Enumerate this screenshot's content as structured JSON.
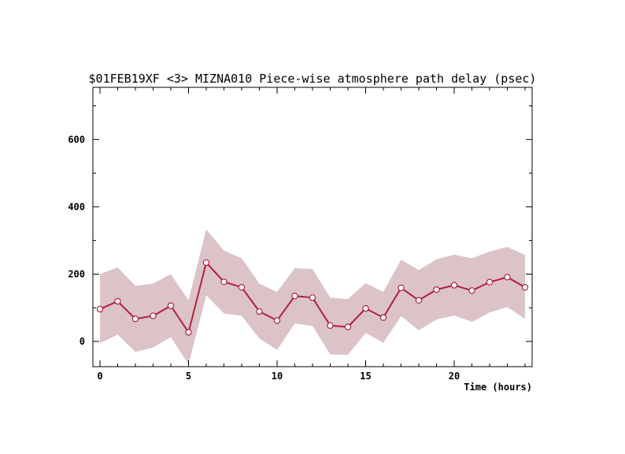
{
  "chart_data": {
    "type": "line",
    "title": "$01FEB19XF <3>  MIZNA010  Piece-wise atmosphere path delay (psec)",
    "xlabel": "Time (hours)",
    "ylabel": "",
    "xlim": [
      -0.4,
      24.4
    ],
    "ylim": [
      -75,
      755
    ],
    "x_ticks": [
      0,
      5,
      10,
      15,
      20
    ],
    "y_ticks": [
      0,
      200,
      400,
      600
    ],
    "grid": false,
    "colors": {
      "line": "#b0203f",
      "band": "#dcc3c8",
      "marker_fill": "#ffffff"
    },
    "series": [
      {
        "x": [
          0,
          1,
          2,
          3,
          4,
          5,
          6,
          7,
          8,
          9,
          10,
          11,
          12,
          13,
          14,
          15,
          16,
          17,
          18,
          19,
          20,
          21,
          22,
          23,
          24
        ],
        "values": [
          96,
          119,
          67,
          76,
          106,
          27,
          234,
          177,
          161,
          89,
          62,
          135,
          130,
          47,
          43,
          98,
          71,
          159,
          122,
          154,
          167,
          151,
          176,
          191,
          161
        ],
        "upper": [
          200,
          220,
          165,
          172,
          200,
          122,
          333,
          270,
          247,
          172,
          147,
          218,
          215,
          130,
          126,
          173,
          147,
          243,
          212,
          244,
          258,
          247,
          267,
          281,
          257
        ],
        "lower": [
          -5,
          20,
          -31,
          -18,
          13,
          -68,
          137,
          83,
          76,
          9,
          -25,
          53,
          46,
          -38,
          -40,
          25,
          -4,
          75,
          33,
          65,
          77,
          58,
          86,
          102,
          67
        ]
      }
    ]
  }
}
